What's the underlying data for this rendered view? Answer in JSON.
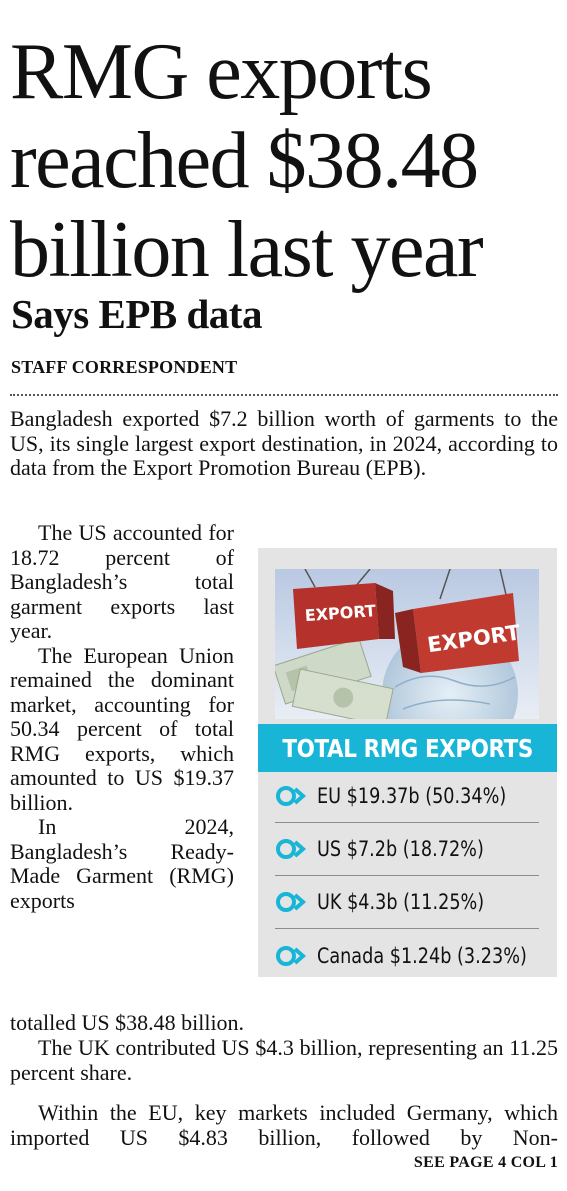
{
  "headline": {
    "line1": "RMG exports",
    "line2": "reached $38.48",
    "line3": "billion last year"
  },
  "subhead": "Says EPB data",
  "byline": "STAFF CORRESPONDENT",
  "body": {
    "p1": "Bangladesh exported $7.2 billion worth of garments to the US, its single largest export destination, in 2024, according to data from the Export Promotion Bureau (EPB).",
    "p2": "The US accounted for 18.72 percent of Bangladesh’s total garment exports last year.",
    "p3": "The European Union remained the dominant market, accounting for 50.34 percent of total RMG exports, which amounted to US $19.37 billion.",
    "p4a": "In 2024, Bangladesh’s Ready-Made Garment (RMG) exports",
    "p4b": "totalled US $38.48 billion.",
    "p5": "The UK contributed US $4.3 billion, representing an 11.25 percent share.",
    "p6": "Within the EU, key markets included Germany, which imported US $4.83 billion, followed by Non-"
  },
  "continuation": "SEE PAGE 4 COL 1",
  "infographic": {
    "photo_labels": [
      "EXPORT",
      "EXPORT"
    ],
    "title": "TOTAL RMG EXPORTS",
    "items": [
      {
        "label": "EU $19.37b (50.34%)",
        "icon": "chevron-circle-icon"
      },
      {
        "label": "US $7.2b (18.72%)",
        "icon": "chevron-circle-icon"
      },
      {
        "label": "UK $4.3b (11.25%)",
        "icon": "chevron-circle-icon"
      },
      {
        "label": "Canada $1.24b (3.23%)",
        "icon": "chevron-circle-icon"
      }
    ],
    "colors": {
      "accent": "#18b5d7",
      "box": "#e4e4e4",
      "container": "#b5312c"
    }
  }
}
